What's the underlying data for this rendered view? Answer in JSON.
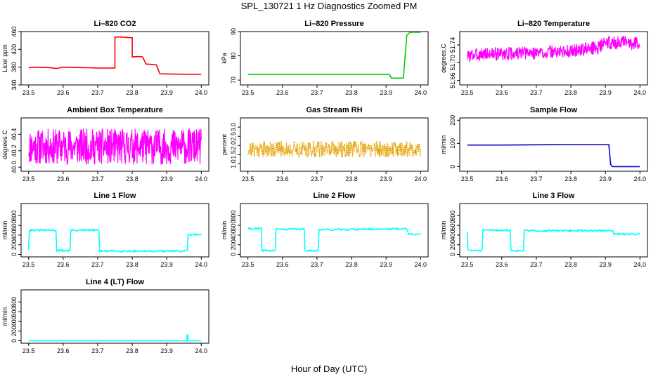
{
  "figure": {
    "title": "SPL_130721  1 Hz Diagnostics Zoomed PM",
    "xlabel": "Hour of Day (UTC)"
  },
  "chart_data": [
    {
      "type": "line",
      "title": "Li–820 CO2",
      "ylabel": "Licor ppm",
      "xlim": [
        23.5,
        24.0
      ],
      "ylim": [
        340,
        460
      ],
      "xticks": [
        "23.5",
        "23.6",
        "23.7",
        "23.8",
        "23.9",
        "24.0"
      ],
      "yticks": [
        340,
        380,
        420,
        460
      ],
      "yticklabels": [
        "340",
        "380",
        "420",
        "460"
      ],
      "color": "#ff0000",
      "series": [
        {
          "x": [
            23.5,
            23.51,
            23.56,
            23.58,
            23.6,
            23.65,
            23.7,
            23.75,
            23.75,
            23.76,
            23.78,
            23.8,
            23.8,
            23.82,
            23.83,
            23.84,
            23.86,
            23.87,
            23.88,
            23.95,
            24.0
          ],
          "y": [
            378,
            380,
            379,
            377,
            380,
            379,
            378,
            378,
            447,
            448,
            447,
            446,
            403,
            404,
            403,
            387,
            386,
            385,
            365,
            364,
            364
          ]
        }
      ]
    },
    {
      "type": "line",
      "title": "Li–820 Pressure",
      "ylabel": "kPa",
      "xlim": [
        23.5,
        24.0
      ],
      "ylim": [
        68,
        90
      ],
      "xticks": [
        "23.5",
        "23.6",
        "23.7",
        "23.8",
        "23.9",
        "24.0"
      ],
      "yticks": [
        70,
        80,
        90
      ],
      "yticklabels": [
        "70",
        "80",
        "90"
      ],
      "color": "#00cc00",
      "series": [
        {
          "x": [
            23.5,
            23.6,
            23.7,
            23.8,
            23.91,
            23.915,
            23.95,
            23.96,
            23.97,
            24.0
          ],
          "y": [
            72.3,
            72.3,
            72.3,
            72.3,
            72.3,
            70.8,
            70.8,
            88.5,
            89.7,
            89.7
          ]
        }
      ]
    },
    {
      "type": "line",
      "title": "Li–820 Temperature",
      "ylabel": "degrees.C",
      "xlim": [
        23.5,
        24.0
      ],
      "ylim": [
        51.65,
        51.77
      ],
      "xticks": [
        "23.5",
        "23.6",
        "23.7",
        "23.8",
        "23.9",
        "24.0"
      ],
      "yticks": [
        51.66,
        51.7,
        51.74
      ],
      "yticklabels": [
        "51.66",
        "51.70",
        "51.74"
      ],
      "color": "#ff00ff",
      "series": [
        {
          "x": [
            23.5,
            23.55,
            23.6,
            23.7,
            23.8,
            23.88,
            23.9,
            24.0
          ],
          "y": [
            51.715,
            51.72,
            51.72,
            51.722,
            51.726,
            51.735,
            51.745,
            51.745
          ]
        }
      ]
    },
    {
      "type": "line",
      "title": "Ambient Box Temperature",
      "ylabel": "degrees.C",
      "xlim": [
        23.5,
        24.0
      ],
      "ylim": [
        39.95,
        40.6
      ],
      "xticks": [
        "23.5",
        "23.6",
        "23.7",
        "23.8",
        "23.9",
        "24.0"
      ],
      "yticks": [
        40.0,
        40.2,
        40.4
      ],
      "yticklabels": [
        "40.0",
        "40.2",
        "40.4"
      ],
      "color": "#ff00ff",
      "series": [
        {
          "x": [
            23.5,
            24.0
          ],
          "y": [
            40.25,
            40.25
          ]
        }
      ]
    },
    {
      "type": "line",
      "title": "Gas Stream RH",
      "ylabel": "percent",
      "xlim": [
        23.5,
        24.0
      ],
      "ylim": [
        0.6,
        3.5
      ],
      "xticks": [
        "23.5",
        "23.6",
        "23.7",
        "23.8",
        "23.9",
        "24.0"
      ],
      "yticks": [
        1.0,
        1.5,
        2.0,
        2.5,
        3.0
      ],
      "yticklabels": [
        "1.0",
        "1.5",
        "2.0",
        "2.5",
        "3.0"
      ],
      "color": "#e6a000",
      "series": [
        {
          "x": [
            23.5,
            24.0
          ],
          "y": [
            1.8,
            1.8
          ]
        }
      ]
    },
    {
      "type": "line",
      "title": "Sample Flow",
      "ylabel": "ml/min",
      "xlim": [
        23.5,
        24.0
      ],
      "ylim": [
        -20,
        210
      ],
      "xticks": [
        "23.5",
        "23.6",
        "23.7",
        "23.8",
        "23.9",
        "24.0"
      ],
      "yticks": [
        0,
        100,
        200
      ],
      "yticklabels": [
        "0",
        "100",
        "200"
      ],
      "color": "#0000cc",
      "series": [
        {
          "x": [
            23.5,
            23.6,
            23.7,
            23.8,
            23.91,
            23.915,
            23.92,
            24.0
          ],
          "y": [
            93,
            93,
            94,
            95,
            95,
            10,
            0,
            0
          ]
        }
      ]
    },
    {
      "type": "line",
      "title": "Line 1 Flow",
      "ylabel": "ml/min",
      "xlim": [
        23.5,
        24.0
      ],
      "ylim": [
        -50,
        1050
      ],
      "xticks": [
        "23.5",
        "23.6",
        "23.7",
        "23.8",
        "23.9",
        "24.0"
      ],
      "yticks": [
        0,
        200,
        400,
        600,
        800
      ],
      "yticklabels": [
        "0",
        "200",
        "400",
        "600",
        "800"
      ],
      "color": "#00ffff",
      "series": [
        {
          "x": [
            23.5,
            23.502,
            23.58,
            23.58,
            23.62,
            23.62,
            23.705,
            23.705,
            23.96,
            23.96,
            24.0
          ],
          "y": [
            100,
            500,
            500,
            80,
            80,
            500,
            500,
            70,
            70,
            400,
            420
          ]
        }
      ]
    },
    {
      "type": "line",
      "title": "Line 2 Flow",
      "ylabel": "ml/min",
      "xlim": [
        23.5,
        24.0
      ],
      "ylim": [
        -50,
        1050
      ],
      "xticks": [
        "23.5",
        "23.6",
        "23.7",
        "23.8",
        "23.9",
        "24.0"
      ],
      "yticks": [
        0,
        200,
        400,
        600,
        800
      ],
      "yticklabels": [
        "0",
        "200",
        "400",
        "600",
        "800"
      ],
      "color": "#00ffff",
      "series": [
        {
          "x": [
            23.5,
            23.54,
            23.54,
            23.58,
            23.58,
            23.665,
            23.665,
            23.705,
            23.705,
            23.96,
            23.965,
            24.0
          ],
          "y": [
            530,
            530,
            80,
            80,
            520,
            520,
            80,
            80,
            510,
            530,
            420,
            420
          ]
        }
      ]
    },
    {
      "type": "line",
      "title": "Line 3 Flow",
      "ylabel": "ml/min",
      "xlim": [
        23.5,
        24.0
      ],
      "ylim": [
        -50,
        1050
      ],
      "xticks": [
        "23.5",
        "23.6",
        "23.7",
        "23.8",
        "23.9",
        "24.0"
      ],
      "yticks": [
        0,
        200,
        400,
        600,
        800
      ],
      "yticklabels": [
        "0",
        "200",
        "400",
        "600",
        "800"
      ],
      "color": "#00ffff",
      "series": [
        {
          "x": [
            23.5,
            23.502,
            23.545,
            23.545,
            23.625,
            23.625,
            23.665,
            23.665,
            23.92,
            23.925,
            24.0
          ],
          "y": [
            470,
            80,
            80,
            500,
            500,
            80,
            80,
            490,
            490,
            420,
            420
          ]
        }
      ]
    },
    {
      "type": "line",
      "title": "Line 4 (LT) Flow",
      "ylabel": "ml/min",
      "xlim": [
        23.5,
        24.0
      ],
      "ylim": [
        -50,
        1050
      ],
      "xticks": [
        "23.5",
        "23.6",
        "23.7",
        "23.8",
        "23.9",
        "24.0"
      ],
      "yticks": [
        0,
        200,
        400,
        600,
        800
      ],
      "yticklabels": [
        "0",
        "200",
        "400",
        "600",
        "800"
      ],
      "color": "#00ffff",
      "series": [
        {
          "x": [
            23.5,
            23.958,
            23.959,
            23.961,
            23.962,
            24.0
          ],
          "y": [
            0,
            0,
            120,
            120,
            0,
            0
          ]
        }
      ]
    }
  ]
}
